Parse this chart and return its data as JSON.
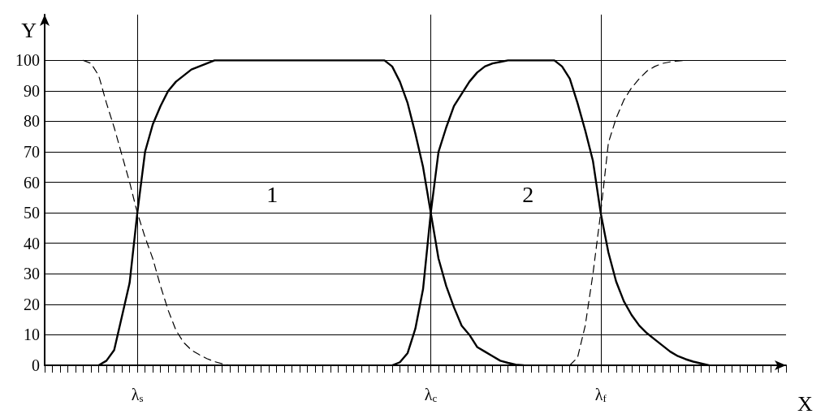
{
  "chart_data": {
    "type": "line",
    "xlabel": "X",
    "ylabel": "Y",
    "ylim": [
      0,
      115
    ],
    "yticks": [
      0,
      10,
      20,
      30,
      40,
      50,
      60,
      70,
      80,
      90,
      100
    ],
    "categories": [
      null,
      null,
      null,
      null,
      null,
      null,
      null,
      null,
      null,
      null,
      null,
      null,
      "λ$_{s}$",
      null,
      null,
      null,
      null,
      null,
      null,
      null,
      null,
      null,
      null,
      null,
      null,
      null,
      null,
      null,
      null,
      null,
      null,
      null,
      null,
      null,
      null,
      null,
      null,
      null,
      null,
      null,
      null,
      null,
      null,
      null,
      null,
      null,
      null,
      null,
      null,
      null,
      "λ$_{c}$",
      null,
      null,
      null,
      null,
      null,
      null,
      null,
      null,
      null,
      null,
      null,
      null,
      null,
      null,
      null,
      null,
      null,
      null,
      null,
      null,
      null,
      "λ$_{f}$",
      null,
      null,
      null,
      null,
      null,
      null,
      null,
      null,
      null,
      null,
      null,
      null,
      null,
      null,
      null,
      null,
      null,
      null,
      null,
      null,
      null,
      null,
      null,
      null
    ],
    "grid": "y",
    "marker": "none",
    "series": [
      {
        "color": "#000000",
        "line_style": "solid",
        "values": [
          null,
          null,
          null,
          null,
          null,
          null,
          null,
          0,
          1.5,
          5,
          16,
          27,
          50,
          70,
          79,
          85,
          90,
          93,
          95,
          97,
          98,
          99,
          100,
          100,
          100,
          100,
          100,
          100,
          100,
          100,
          100,
          100,
          100,
          100,
          100,
          100,
          100,
          100,
          100,
          100,
          100,
          100,
          100,
          100,
          100,
          98,
          93,
          86,
          76,
          65,
          50,
          35,
          26,
          19,
          13,
          10,
          6,
          4.5,
          3,
          1.5,
          0.8,
          0.2,
          0,
          null,
          null,
          null,
          null,
          null,
          null,
          null,
          null,
          null,
          null,
          null,
          null,
          null,
          null,
          null,
          null,
          null,
          null,
          null,
          null,
          null,
          null,
          null,
          null,
          null,
          null,
          null,
          null,
          null,
          null,
          null,
          null,
          null,
          null
        ]
      },
      {
        "color": "#000000",
        "line_style": "solid",
        "values": [
          null,
          null,
          null,
          null,
          null,
          null,
          null,
          null,
          null,
          null,
          null,
          null,
          null,
          null,
          null,
          null,
          null,
          null,
          null,
          null,
          null,
          null,
          null,
          null,
          null,
          null,
          null,
          null,
          null,
          null,
          null,
          null,
          null,
          null,
          null,
          null,
          null,
          null,
          null,
          null,
          null,
          null,
          null,
          null,
          null,
          0,
          1,
          4,
          12,
          25,
          50,
          70,
          78,
          85,
          89,
          93,
          96,
          98,
          99,
          99.5,
          100,
          100,
          100,
          100,
          100,
          100,
          100,
          98,
          94,
          86,
          77,
          67,
          50,
          37,
          27.5,
          21,
          16.5,
          13,
          10.5,
          8.5,
          6.5,
          4.5,
          3,
          2,
          1.2,
          0.6,
          0,
          null,
          null,
          null,
          null,
          null,
          null,
          null,
          null,
          null,
          null
        ]
      },
      {
        "color": "#000000",
        "line_style": "dashed",
        "values": [
          null,
          null,
          null,
          null,
          null,
          100,
          99,
          95,
          86,
          78,
          69,
          60,
          50,
          42,
          35,
          26,
          18,
          11.5,
          7.5,
          5,
          3.5,
          2.2,
          1.2,
          0.5,
          0,
          null,
          null,
          null,
          null,
          null,
          null,
          null,
          null,
          null,
          null,
          null,
          null,
          null,
          null,
          null,
          null,
          null,
          null,
          null,
          null,
          null,
          null,
          null,
          null,
          null,
          null,
          null,
          null,
          null,
          null,
          null,
          null,
          null,
          null,
          null,
          null,
          null,
          null,
          null,
          null,
          null,
          null,
          null,
          null,
          null,
          null,
          null,
          null,
          null,
          null,
          null,
          null,
          null,
          null,
          null,
          null,
          null,
          null,
          null,
          null,
          null,
          null,
          null,
          null,
          null,
          null,
          null,
          null,
          null,
          null,
          null,
          null
        ]
      },
      {
        "color": "#000000",
        "line_style": "dashed",
        "values": [
          null,
          null,
          null,
          null,
          null,
          null,
          null,
          null,
          null,
          null,
          null,
          null,
          null,
          null,
          null,
          null,
          null,
          null,
          null,
          null,
          null,
          null,
          null,
          null,
          null,
          null,
          null,
          null,
          null,
          null,
          null,
          null,
          null,
          null,
          null,
          null,
          null,
          null,
          null,
          null,
          null,
          null,
          null,
          null,
          null,
          null,
          null,
          null,
          null,
          null,
          null,
          null,
          null,
          null,
          null,
          null,
          null,
          null,
          null,
          null,
          null,
          null,
          null,
          null,
          null,
          null,
          null,
          null,
          0,
          2.5,
          13,
          30,
          50,
          73,
          81,
          87,
          91,
          94,
          96.5,
          98,
          99,
          99.5,
          99.8,
          100,
          null,
          null,
          null,
          null,
          null,
          null,
          null,
          null,
          null,
          null,
          null,
          null,
          null
        ]
      }
    ],
    "ref_lines": [
      {
        "axis": "x",
        "value": "λ$_{s}$",
        "color": "#000000"
      },
      {
        "axis": "x",
        "value": "λ$_{c}$",
        "color": "#000000"
      },
      {
        "axis": "x",
        "value": "λ$_{f}$",
        "color": "#000000"
      }
    ],
    "annotations": [
      "1",
      "2"
    ]
  }
}
